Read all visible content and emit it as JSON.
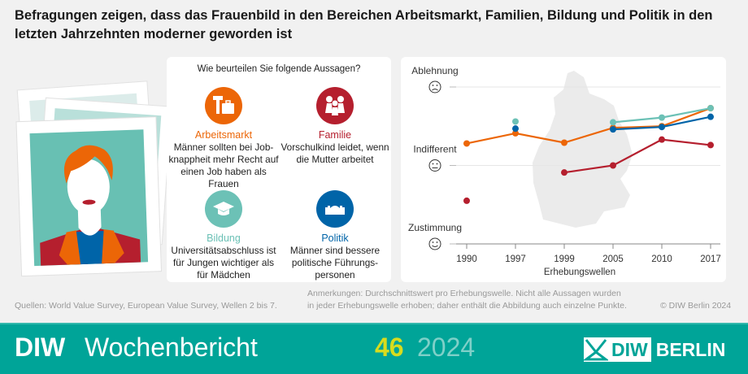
{
  "title": "Befragungen zeigen, dass das Frauenbild in den Bereichen Arbeitsmarkt, Familien, Bildung und Politik in den letzten Jahrzehnten moderner geworden ist",
  "panel": {
    "question": "Wie beurteilen Sie folgende Aussagen?",
    "items": [
      {
        "category": "Arbeitsmarkt",
        "statement": "Männer sollten bei Job-knappheit mehr Recht auf einen Job haben als Frauen",
        "color": "#ec6607",
        "icon": "hammer-briefcase-icon"
      },
      {
        "category": "Familie",
        "statement": "Vorschulkind leidet, wenn die Mutter arbeitet",
        "color": "#b51f2e",
        "icon": "family-icon"
      },
      {
        "category": "Bildung",
        "statement": "Universitätsabschluss ist für Jungen wichtiger als für Mädchen",
        "color": "#6cc1b6",
        "icon": "graduation-cap-icon"
      },
      {
        "category": "Politik",
        "statement": "Männer sind bessere politische Führungs-personen",
        "color": "#0064a8",
        "icon": "parliament-icon"
      }
    ]
  },
  "chart_data": {
    "type": "line",
    "categories": [
      "1990",
      "1997",
      "1999",
      "2005",
      "2010",
      "2017"
    ],
    "xlabel": "Erhebungswellen",
    "ylabel": "",
    "y_tick_labels": [
      "Zustimmung",
      "Indifferent",
      "Ablehnung"
    ],
    "ylim": [
      0,
      2
    ],
    "grid": true,
    "series": [
      {
        "name": "Arbeitsmarkt",
        "color": "#ec6607",
        "values": [
          1.28,
          1.41,
          1.29,
          1.48,
          1.5,
          1.73
        ]
      },
      {
        "name": "Familie",
        "color": "#b51f2e",
        "values": [
          0.55,
          null,
          0.91,
          1.0,
          1.33,
          1.26
        ]
      },
      {
        "name": "Bildung",
        "color": "#6cc1b6",
        "values": [
          null,
          1.56,
          null,
          1.55,
          1.61,
          1.73
        ]
      },
      {
        "name": "Politik",
        "color": "#0064a8",
        "values": [
          null,
          1.47,
          null,
          1.46,
          1.49,
          1.62
        ]
      }
    ]
  },
  "footer": {
    "sources": "Quellen: World Value Survey, European Value Survey, Wellen 2 bis 7.",
    "notes_line1": "Anmerkungen: Durchschnittswert pro Erhebungswelle. Nicht alle Aussagen wurden",
    "notes_line2": "in jeder Erhebungswelle erhoben; daher enthält die Abbildung auch einzelne Punkte.",
    "copyright": "© DIW Berlin 2024"
  },
  "brand": {
    "diw": "DIW",
    "name": "Wochenbericht",
    "issue": "46",
    "year": "2024",
    "logo_diw": "DIW",
    "logo_berlin": "BERLIN",
    "issue_color": "#d7dc1e"
  }
}
